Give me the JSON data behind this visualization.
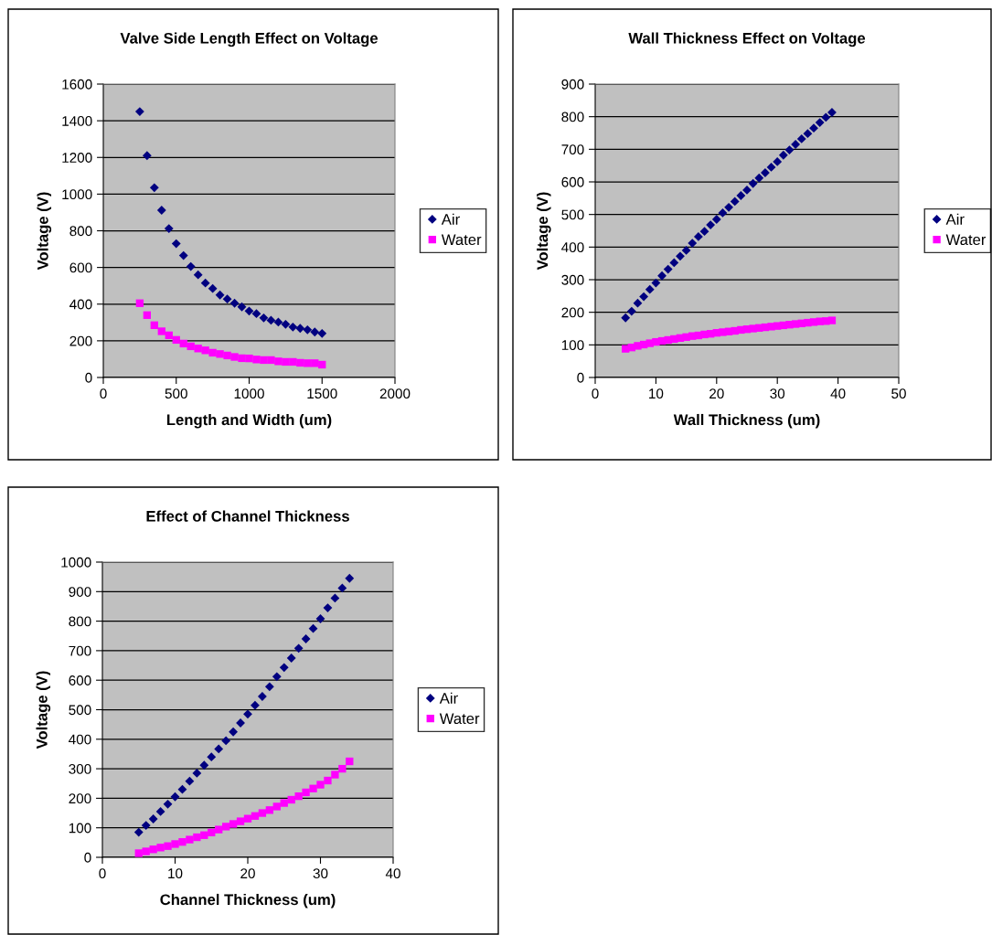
{
  "chart_data": [
    {
      "type": "scatter",
      "title": "Valve Side Length Effect on Voltage",
      "xlabel": "Length and Width (um)",
      "ylabel": "Voltage (V)",
      "x": [
        250,
        300,
        350,
        400,
        450,
        500,
        550,
        600,
        650,
        700,
        750,
        800,
        850,
        900,
        950,
        1000,
        1050,
        1100,
        1150,
        1200,
        1250,
        1300,
        1350,
        1400,
        1450,
        1500
      ],
      "series": [
        {
          "name": "Air",
          "color": "#000080",
          "marker": "diamond",
          "values": [
            1450,
            1210,
            1035,
            912,
            812,
            730,
            665,
            605,
            560,
            515,
            485,
            450,
            428,
            405,
            385,
            362,
            348,
            325,
            312,
            302,
            290,
            275,
            268,
            260,
            248,
            240
          ]
        },
        {
          "name": "Water",
          "color": "#ff00ff",
          "marker": "square",
          "values": [
            405,
            340,
            285,
            252,
            230,
            205,
            185,
            170,
            158,
            148,
            135,
            128,
            120,
            112,
            105,
            104,
            98,
            95,
            95,
            88,
            85,
            85,
            80,
            78,
            78,
            70
          ]
        }
      ],
      "xlim": [
        0,
        2000
      ],
      "xticks": [
        0,
        500,
        1000,
        1500,
        2000
      ],
      "ylim": [
        0,
        1600
      ],
      "yticks": [
        0,
        200,
        400,
        600,
        800,
        1000,
        1200,
        1400,
        1600
      ],
      "grid": "y",
      "legend": "right"
    },
    {
      "type": "scatter",
      "title": "Wall Thickness Effect on Voltage",
      "xlabel": "Wall Thickness (um)",
      "ylabel": "Voltage (V)",
      "x": [
        5,
        6,
        7,
        8,
        9,
        10,
        11,
        12,
        13,
        14,
        15,
        16,
        17,
        18,
        19,
        20,
        21,
        22,
        23,
        24,
        25,
        26,
        27,
        28,
        29,
        30,
        31,
        32,
        33,
        34,
        35,
        36,
        37,
        38,
        39
      ],
      "series": [
        {
          "name": "Air",
          "color": "#000080",
          "marker": "diamond",
          "values": [
            183,
            203,
            228,
            248,
            270,
            290,
            312,
            332,
            352,
            372,
            390,
            412,
            432,
            448,
            468,
            485,
            505,
            522,
            540,
            558,
            575,
            595,
            612,
            628,
            645,
            662,
            682,
            698,
            715,
            732,
            748,
            765,
            782,
            798,
            813
          ]
        },
        {
          "name": "Water",
          "color": "#ff00ff",
          "marker": "square",
          "values": [
            88,
            92,
            97,
            101,
            105,
            109,
            112,
            115,
            118,
            121,
            124,
            127,
            129,
            132,
            134,
            137,
            139,
            141,
            143,
            146,
            148,
            150,
            152,
            154,
            156,
            158,
            160,
            162,
            164,
            166,
            168,
            170,
            172,
            173,
            175
          ]
        }
      ],
      "xlim": [
        0,
        50
      ],
      "xticks": [
        0,
        10,
        20,
        30,
        40,
        50
      ],
      "ylim": [
        0,
        900
      ],
      "yticks": [
        0,
        100,
        200,
        300,
        400,
        500,
        600,
        700,
        800,
        900
      ],
      "grid": "y",
      "legend": "right"
    },
    {
      "type": "scatter",
      "title": "Effect of Channel Thickness",
      "xlabel": "Channel Thickness (um)",
      "ylabel": "Voltage (V)",
      "x": [
        5,
        6,
        7,
        8,
        9,
        10,
        11,
        12,
        13,
        14,
        15,
        16,
        17,
        18,
        19,
        20,
        21,
        22,
        23,
        24,
        25,
        26,
        27,
        28,
        29,
        30,
        31,
        32,
        33,
        34
      ],
      "series": [
        {
          "name": "Air",
          "color": "#000080",
          "marker": "diamond",
          "values": [
            85,
            108,
            130,
            155,
            180,
            205,
            230,
            258,
            285,
            312,
            340,
            367,
            395,
            425,
            455,
            485,
            515,
            545,
            578,
            612,
            643,
            675,
            708,
            740,
            775,
            808,
            845,
            878,
            912,
            945
          ]
        },
        {
          "name": "Water",
          "color": "#ff00ff",
          "marker": "square",
          "values": [
            14,
            20,
            27,
            33,
            38,
            45,
            52,
            60,
            68,
            75,
            84,
            94,
            104,
            113,
            122,
            131,
            140,
            150,
            160,
            172,
            184,
            195,
            207,
            220,
            233,
            246,
            260,
            280,
            300,
            325
          ]
        }
      ],
      "xlim": [
        0,
        40
      ],
      "xticks": [
        0,
        10,
        20,
        30,
        40
      ],
      "ylim": [
        0,
        1000
      ],
      "yticks": [
        0,
        100,
        200,
        300,
        400,
        500,
        600,
        700,
        800,
        900,
        1000
      ],
      "grid": "y",
      "legend": "right"
    }
  ]
}
